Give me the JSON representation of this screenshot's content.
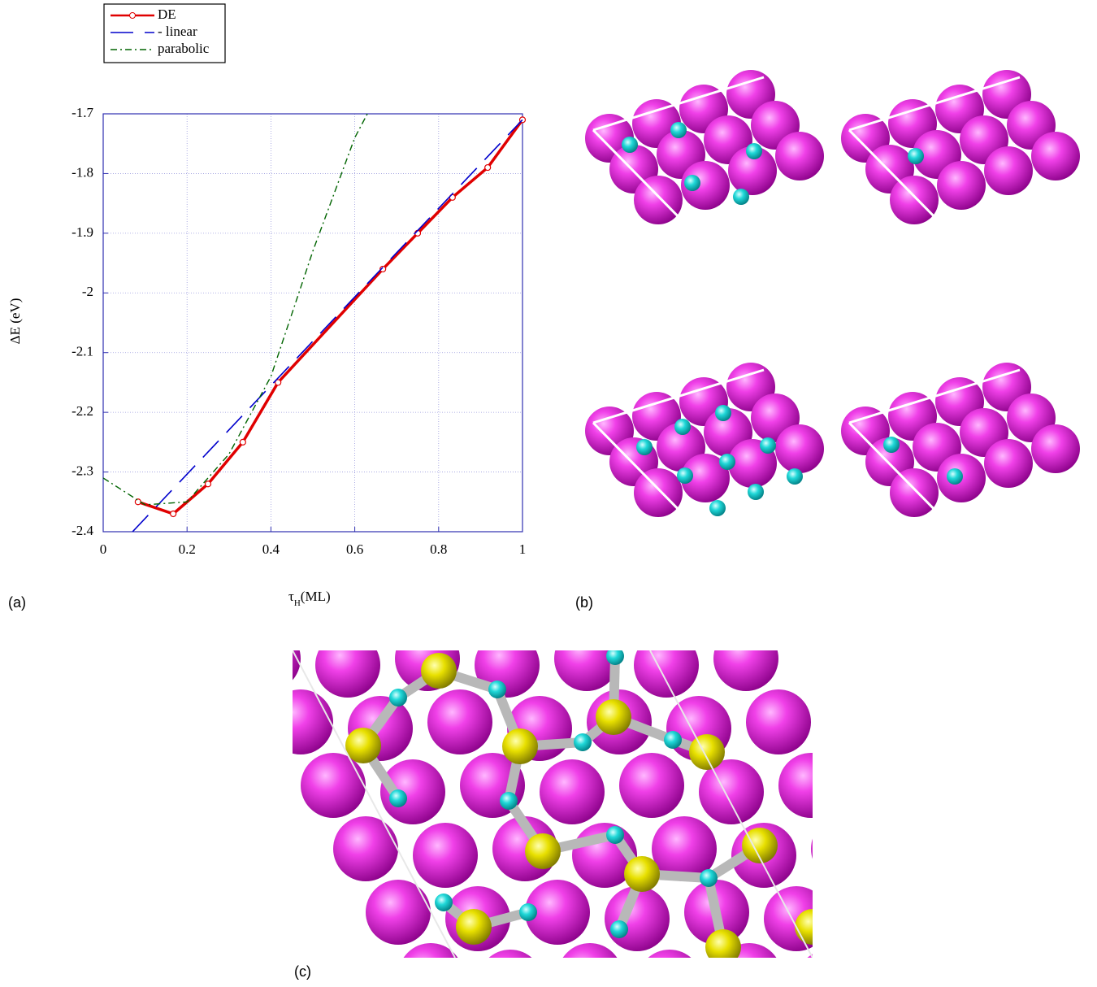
{
  "chart_data": {
    "type": "line",
    "ylabel": "ΔE (eV)",
    "xlabel": {
      "symbol": "τ",
      "subscript": "H",
      "unit": "(ML)"
    },
    "xlim": [
      0,
      1
    ],
    "xticks": [
      0,
      0.2,
      0.4,
      0.6,
      0.8,
      1
    ],
    "ylim": [
      -2.4,
      -1.7
    ],
    "yticks": [
      -2.4,
      -2.3,
      -2.2,
      -2.1,
      -2,
      -1.9,
      -1.8,
      -1.7
    ],
    "grid": true,
    "legend": "top-left",
    "series": [
      {
        "name": "DE",
        "color": "#e00000",
        "style": "solid",
        "marker": "circle",
        "x": [
          0.083,
          0.167,
          0.25,
          0.333,
          0.417,
          0.667,
          0.75,
          0.833,
          0.917,
          1.0
        ],
        "values": [
          -2.35,
          -2.37,
          -2.32,
          -2.25,
          -2.15,
          -1.96,
          -1.9,
          -1.84,
          -1.79,
          -1.71
        ]
      },
      {
        "name": "- linear",
        "color": "#0000cc",
        "style": "dashed",
        "x": [
          0.07,
          1.0
        ],
        "values": [
          -2.4,
          -1.71
        ]
      },
      {
        "name": "parabolic",
        "color": "#006400",
        "style": "dashdot",
        "x": [
          0,
          0.1,
          0.2,
          0.3,
          0.4,
          0.5,
          0.6,
          0.63
        ],
        "values": [
          -2.31,
          -2.355,
          -2.35,
          -2.27,
          -2.14,
          -1.93,
          -1.74,
          -1.7
        ]
      }
    ]
  },
  "panels": [
    "(a)",
    "(b)",
    "(c)"
  ]
}
